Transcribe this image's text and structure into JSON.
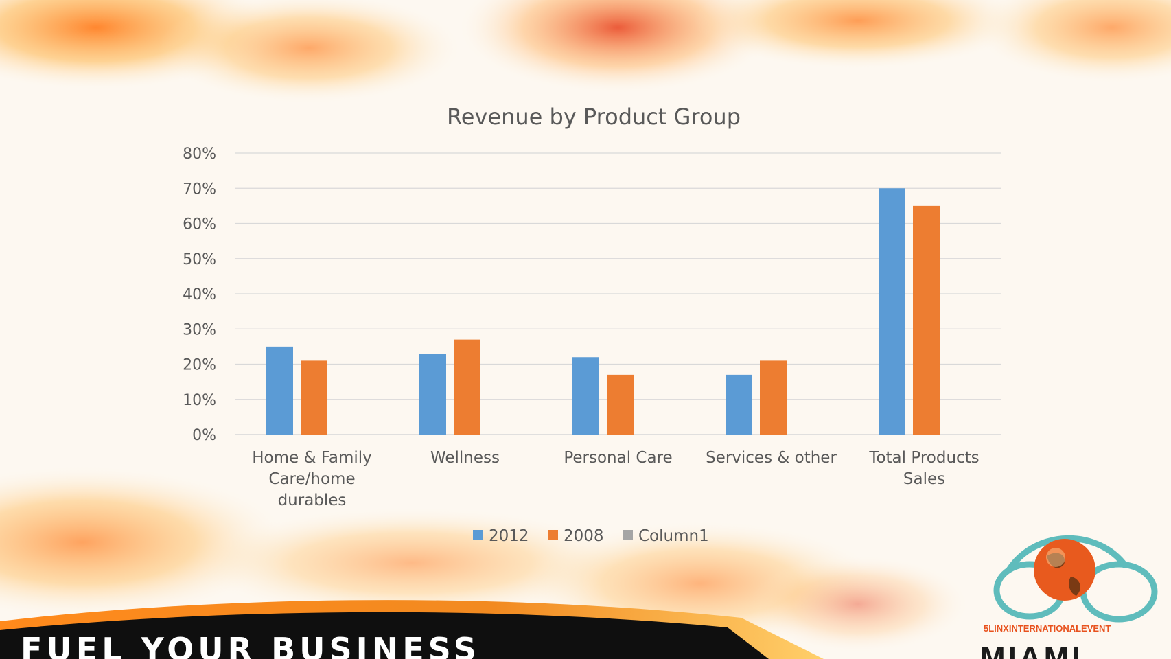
{
  "chart_data": {
    "type": "bar",
    "title": "Revenue by Product Group",
    "categories": [
      "Home & Family Care/home durables",
      "Wellness",
      "Personal Care",
      "Services & other",
      "Total Products Sales"
    ],
    "category_lines": [
      [
        "Home & Family",
        "Care/home",
        "durables"
      ],
      [
        "Wellness"
      ],
      [
        "Personal Care"
      ],
      [
        "Services & other"
      ],
      [
        "Total Products",
        "Sales"
      ]
    ],
    "series": [
      {
        "name": "2012",
        "color": "#5b9bd5",
        "values": [
          0.25,
          0.23,
          0.22,
          0.17,
          0.7
        ]
      },
      {
        "name": "2008",
        "color": "#ed7d31",
        "values": [
          0.21,
          0.27,
          0.17,
          0.21,
          0.65
        ]
      },
      {
        "name": "Column1",
        "color": "#a5a5a5",
        "values": [
          0,
          0,
          0,
          0,
          0
        ]
      }
    ],
    "ylim": [
      0,
      0.8
    ],
    "yticks": [
      0,
      0.1,
      0.2,
      0.3,
      0.4,
      0.5,
      0.6,
      0.7,
      0.8
    ],
    "ytick_labels": [
      "0%",
      "10%",
      "20%",
      "30%",
      "40%",
      "50%",
      "60%",
      "70%",
      "80%"
    ],
    "grid": true,
    "legend_position": "bottom"
  },
  "banner": {
    "text": "FUEL YOUR BUSINESS"
  },
  "logo": {
    "tagline": "5LINXINTERNATIONALEVENT",
    "city": "MIAMI"
  }
}
